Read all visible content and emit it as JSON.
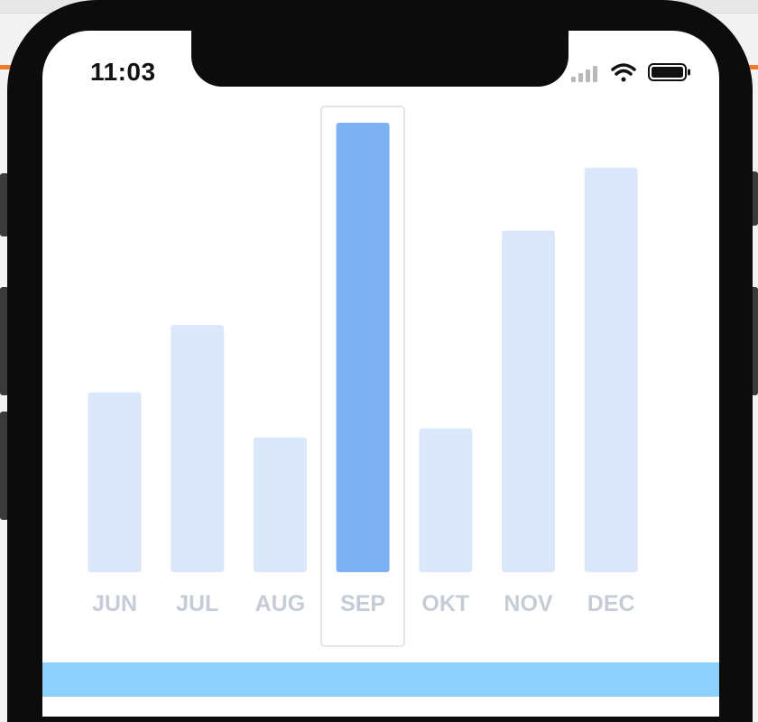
{
  "status_bar": {
    "time": "11:03",
    "signal_icon": "cellular-signal-icon",
    "wifi_icon": "wifi-icon",
    "battery_icon": "battery-icon"
  },
  "chart_data": {
    "type": "bar",
    "categories": [
      "JUN",
      "JUL",
      "AUG",
      "SEP",
      "OKT",
      "NOV",
      "DEC"
    ],
    "values": [
      40,
      55,
      30,
      100,
      32,
      76,
      90
    ],
    "ylim": [
      0,
      100
    ],
    "selected_index": 3,
    "grid": false,
    "colors": {
      "bar": "#dbe8fb",
      "bar_selected": "#7eb0f4",
      "label": "#c6ccd6",
      "selection_border": "#e2e4e8"
    }
  },
  "colors": {
    "bottom_band": "#8dd0fb",
    "bezel": "#0c0c0c"
  }
}
